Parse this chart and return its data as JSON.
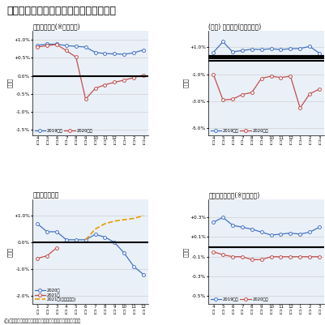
{
  "title": "図表４　年金額改定に関係する経済動向",
  "note": "(注)公的年金加入者はマクロ経済スライドの調整率の計算根拠。",
  "panel1": {
    "title": "標準報酬月額(※共済以外)",
    "ylabel": "前年比",
    "xticks": [
      "4",
      "5",
      "6",
      "7",
      "8",
      "9",
      "10",
      "11",
      "12",
      "1",
      "2",
      "3"
    ],
    "ylim": [
      -1.65,
      1.25
    ],
    "yticks": [
      -1.5,
      -1.0,
      -0.5,
      0.0,
      0.5,
      1.0
    ],
    "ytick_labels": [
      "-1.5%",
      "-1.0%",
      "-0.5%",
      "0.0%",
      "+0.5%",
      "+1.0%"
    ],
    "hline": 0.0,
    "series": [
      {
        "label": "2019年度",
        "color": "#4472C4",
        "style": "solid",
        "marker": "o",
        "values": [
          0.85,
          0.88,
          0.88,
          0.84,
          0.82,
          0.8,
          0.65,
          0.62,
          0.61,
          0.6,
          0.64,
          0.72
        ]
      },
      {
        "label": "2020年度",
        "color": "#C0504D",
        "style": "solid",
        "marker": "o",
        "values": [
          0.8,
          0.84,
          0.87,
          0.7,
          0.52,
          -0.65,
          -0.35,
          -0.25,
          -0.18,
          -0.12,
          -0.05,
          0.02
        ]
      }
    ]
  },
  "panel2": {
    "title": "(参考) 現金給与(一般労働者)",
    "ylabel": "前年比",
    "xticks": [
      "4",
      "5",
      "6",
      "7",
      "8",
      "9",
      "10",
      "11",
      "12",
      "1",
      "2",
      "3"
    ],
    "ylim": [
      -5.5,
      2.2
    ],
    "yticks": [
      -5.0,
      -3.0,
      -1.0,
      1.0
    ],
    "ytick_labels": [
      "-5.0%",
      "-3.0%",
      "-1.0%",
      "+1.0%"
    ],
    "hline": 0.0,
    "thick_hline": 0.3,
    "series": [
      {
        "label": "2019年度",
        "color": "#4472C4",
        "style": "solid",
        "marker": "o",
        "values": [
          0.6,
          1.4,
          0.65,
          0.75,
          0.85,
          0.82,
          0.88,
          0.82,
          0.88,
          0.9,
          1.05,
          0.55
        ]
      },
      {
        "label": "2020年度",
        "color": "#C0504D",
        "style": "solid",
        "marker": "o",
        "values": [
          -1.0,
          -2.9,
          -2.85,
          -2.5,
          -2.35,
          -1.3,
          -1.15,
          -1.25,
          -1.15,
          -3.5,
          -2.45,
          -2.1
        ]
      }
    ]
  },
  "panel3": {
    "title": "消費者物価指数",
    "ylabel": "前年比",
    "xticks": [
      "1",
      "2",
      "3",
      "4",
      "5",
      "6",
      "7",
      "8",
      "9",
      "10",
      "11",
      "12"
    ],
    "ylim": [
      -2.3,
      1.6
    ],
    "yticks": [
      -2.0,
      -1.0,
      0.0,
      1.0
    ],
    "ytick_labels": [
      "-2.0%",
      "-1.0%",
      "0.0%",
      "+1.0%"
    ],
    "hline": 0.0,
    "series": [
      {
        "label": "2020年",
        "color": "#4472C4",
        "style": "solid",
        "marker": "o",
        "values": [
          0.7,
          0.4,
          0.4,
          0.1,
          0.1,
          0.1,
          0.3,
          0.2,
          0.0,
          -0.4,
          -0.9,
          -1.2
        ]
      },
      {
        "label": "2021年",
        "color": "#C0504D",
        "style": "solid",
        "marker": "o",
        "values": [
          -0.6,
          -0.5,
          -0.2,
          null,
          null,
          null,
          null,
          null,
          null,
          null,
          null,
          null
        ]
      },
      {
        "label": "2021年(弊社見通し)",
        "color": "#E89B00",
        "style": "dashed",
        "marker": null,
        "values": [
          null,
          null,
          null,
          null,
          null,
          0.1,
          0.5,
          0.7,
          0.8,
          0.85,
          0.9,
          1.0
        ]
      }
    ]
  },
  "panel4": {
    "title": "公的年金加入者(※共済以外)",
    "ylabel": "前年比",
    "xticks": [
      "4",
      "5",
      "6",
      "7",
      "8",
      "9",
      "10",
      "11",
      "12",
      "1",
      "2",
      "3"
    ],
    "ylim": [
      -0.58,
      0.48
    ],
    "yticks": [
      -0.5,
      -0.3,
      -0.1,
      0.1,
      0.3
    ],
    "ytick_labels": [
      "-0.5%",
      "-0.3%",
      "-0.1%",
      "+0.1%",
      "+0.3%"
    ],
    "hline": 0.0,
    "thick_hline": 0.0,
    "series": [
      {
        "label": "2019年度",
        "color": "#4472C4",
        "style": "solid",
        "marker": "o",
        "values": [
          0.25,
          0.3,
          0.22,
          0.2,
          0.18,
          0.15,
          0.12,
          0.13,
          0.14,
          0.13,
          0.15,
          0.2
        ]
      },
      {
        "label": "2020年度",
        "color": "#C0504D",
        "style": "solid",
        "marker": "o",
        "values": [
          -0.05,
          -0.08,
          -0.1,
          -0.1,
          -0.13,
          -0.13,
          -0.1,
          -0.1,
          -0.1,
          -0.1,
          -0.1,
          -0.1
        ]
      }
    ]
  },
  "bg_color": "#ffffff",
  "panel_bg": "#eaf0f8",
  "grid_color": "#c8c8c8"
}
